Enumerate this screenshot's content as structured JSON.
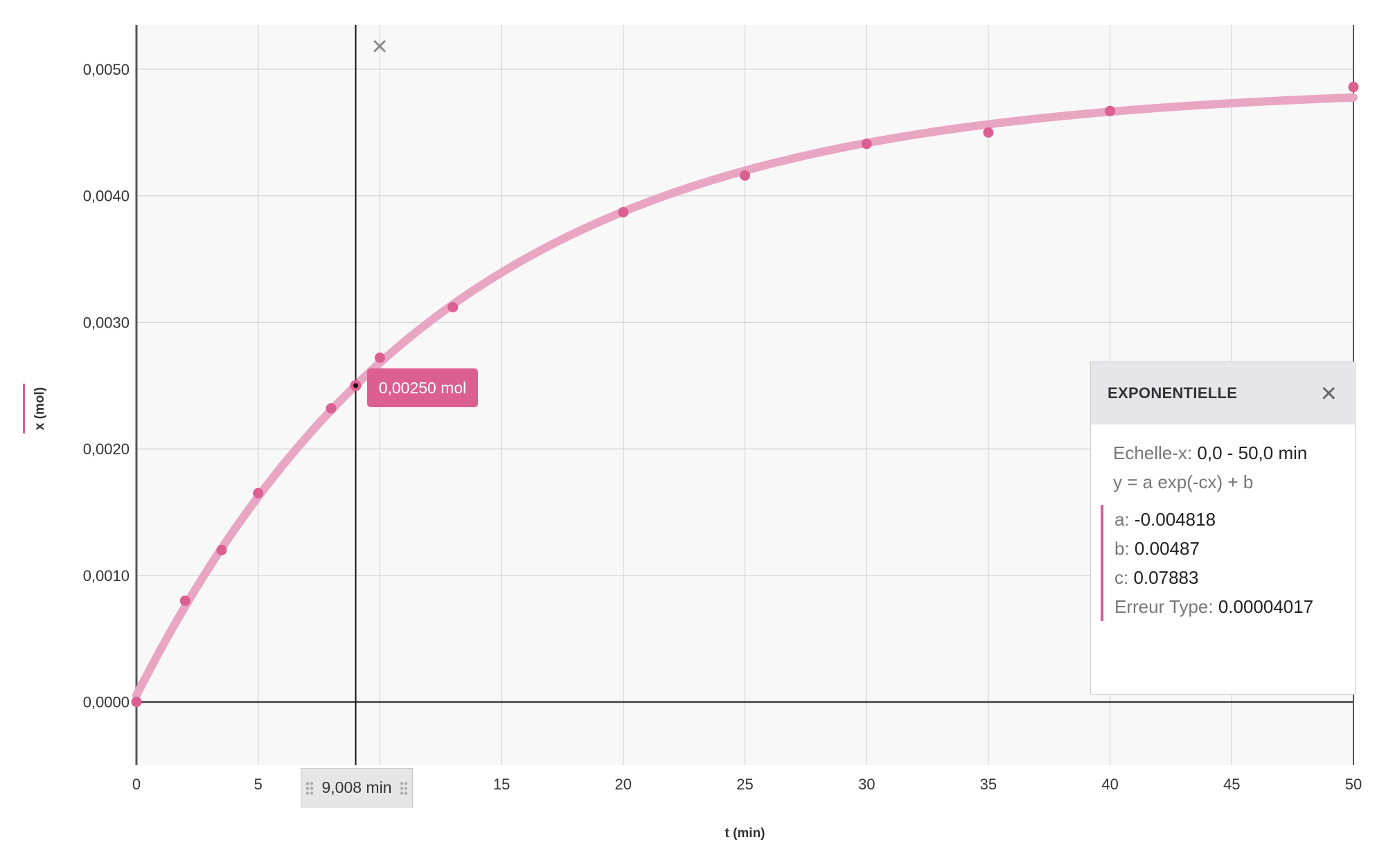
{
  "colors": {
    "series": "#dc5f92",
    "fit_curve": "#e8a6c3",
    "plot_bg": "#f8f8f8",
    "grid": "#cccccc",
    "axis": "#555555"
  },
  "chart_data": {
    "type": "scatter",
    "title": "",
    "xlabel": "t (min)",
    "ylabel": "x (mol)",
    "xlim": [
      0,
      50
    ],
    "ylim": [
      -0.0005,
      0.00535
    ],
    "grid": true,
    "x_ticks": [
      0,
      5,
      15,
      20,
      25,
      30,
      35,
      40,
      45,
      50
    ],
    "x_tick_labels": [
      "0",
      "5",
      "15",
      "20",
      "25",
      "30",
      "35",
      "40",
      "45",
      "50"
    ],
    "x_grid": [
      0,
      5,
      10,
      15,
      20,
      25,
      30,
      35,
      40,
      45,
      50
    ],
    "y_ticks": [
      0,
      0.001,
      0.002,
      0.003,
      0.004,
      0.005
    ],
    "y_tick_labels": [
      "0,0000",
      "0,0010",
      "0,0020",
      "0,0030",
      "0,0040",
      "0,0050"
    ],
    "series": [
      {
        "x": [
          0,
          2,
          3.5,
          5,
          8,
          10,
          13,
          20,
          25,
          30,
          35,
          40,
          50
        ],
        "y": [
          0,
          0.0008,
          0.0012,
          0.00165,
          0.00232,
          0.00272,
          0.00312,
          0.00387,
          0.00416,
          0.00441,
          0.0045,
          0.00467,
          0.00486
        ]
      }
    ],
    "fit": {
      "model": "y = a exp(-cx) + b",
      "a": -0.004818,
      "b": 0.00487,
      "c": 0.07883
    },
    "cursor": {
      "x": 9.008,
      "x_label": "9,008 min",
      "y": 0.0025,
      "y_label": "0,00250 mol"
    }
  },
  "fit_panel": {
    "title": "EXPONENTIELLE",
    "close_icon": "close-icon",
    "scale_label": "Echelle-x:",
    "scale_value": "0,0 - 50,0 min",
    "equation": "y = a exp(-cx) + b",
    "params": [
      {
        "label": "a:",
        "value": "-0.004818"
      },
      {
        "label": "b:",
        "value": "0.00487"
      },
      {
        "label": "c:",
        "value": "0.07883"
      },
      {
        "label": "Erreur Type:",
        "value": "0.00004017"
      }
    ]
  }
}
